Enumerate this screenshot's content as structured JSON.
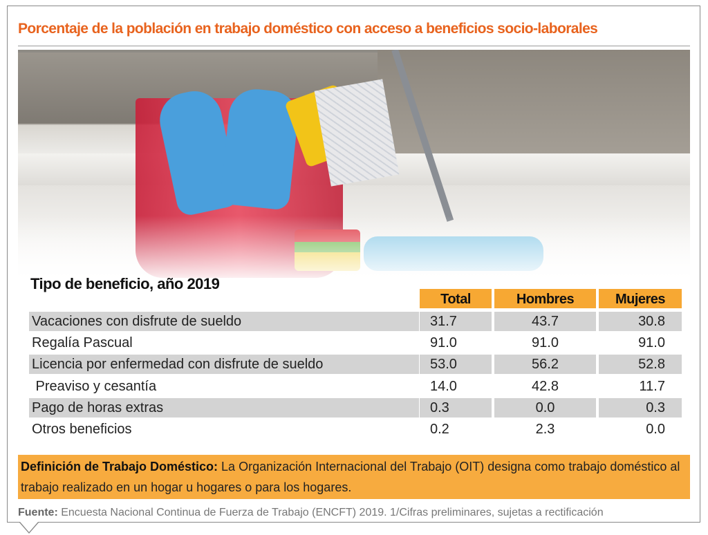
{
  "title": "Porcentaje de la población en trabajo doméstico con acceso a beneficios socio-laborales",
  "colors": {
    "accent": "#e8631e",
    "header_fill": "#f7a833",
    "row_shade": "#d3d3d3"
  },
  "chart_data": {
    "type": "table",
    "title": "Tipo de beneficio, año 2019",
    "columns": [
      "Total",
      "Hombres",
      "Mujeres"
    ],
    "rows": [
      {
        "label": "Vacaciones con disfrute de sueldo",
        "values": [
          "31.7",
          "43.7",
          "30.8"
        ]
      },
      {
        "label": "Regalía Pascual",
        "values": [
          "91.0",
          "91.0",
          "91.0"
        ]
      },
      {
        "label": "Licencia por enfermedad con disfrute de sueldo",
        "values": [
          "53.0",
          "56.2",
          "52.8"
        ]
      },
      {
        "label": " Preaviso y cesantía",
        "values": [
          "14.0",
          "42.8",
          "11.7"
        ]
      },
      {
        "label": "Pago de horas extras",
        "values": [
          "0.3",
          "0.0",
          "0.3"
        ]
      },
      {
        "label": "Otros beneficios",
        "values": [
          "0.2",
          "2.3",
          "0.0"
        ]
      }
    ]
  },
  "definition": {
    "label": "Definición de Trabajo Doméstico:",
    "text": " La Organización Internacional del Trabajo (OIT) designa como trabajo doméstico al trabajo realizado en un hogar u hogares o para los hogares."
  },
  "source": {
    "label": "Fuente:",
    "text": " Encuesta Nacional Continua de Fuerza de Trabajo (ENCFT) 2019. 1/Cifras preliminares, sujetas a rectificación"
  }
}
